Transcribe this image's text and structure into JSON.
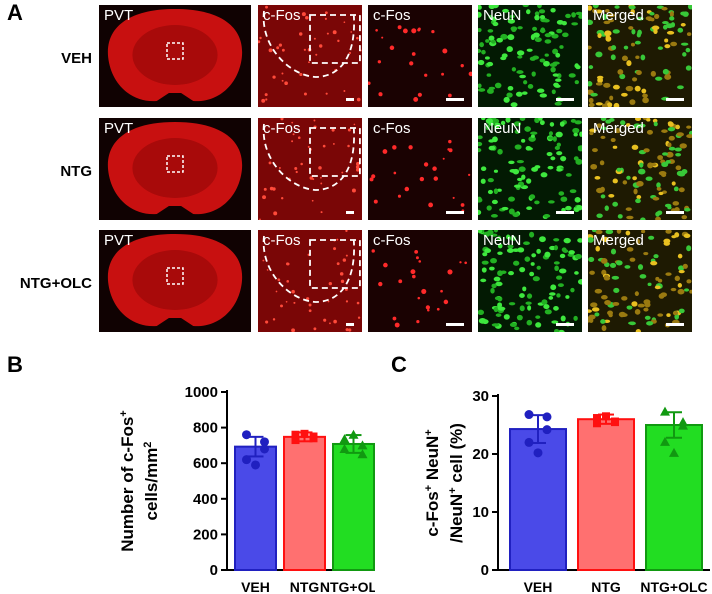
{
  "panel_a": {
    "letter": "A",
    "rows": [
      {
        "label": "VEH",
        "tiles": [
          "PVT",
          "c-Fos",
          "c-Fos",
          "NeuN",
          "Merged"
        ]
      },
      {
        "label": "NTG",
        "tiles": [
          "PVT",
          "c-Fos",
          "c-Fos",
          "NeuN",
          "Merged"
        ]
      },
      {
        "label": "NTG+OLC",
        "tiles": [
          "PVT",
          "c-Fos",
          "c-Fos",
          "NeuN",
          "Merged"
        ]
      }
    ]
  },
  "panel_b": {
    "letter": "B"
  },
  "panel_c": {
    "letter": "C"
  },
  "colors": {
    "veh": "#4a4ae8",
    "ntg": "#ff7070",
    "olc": "#22dd22",
    "veh_dot": "#2020c0",
    "ntg_dot": "#ff1010",
    "olc_dot": "#119911"
  },
  "chart_data": [
    {
      "type": "bar",
      "ylabel": "Number of c-Fos⁺ cells/mm²",
      "categories": [
        "VEH",
        "NTG",
        "NTG+OLC"
      ],
      "values": [
        693,
        748,
        708
      ],
      "errors": [
        55,
        25,
        50
      ],
      "points": [
        [
          760,
          620,
          720,
          590,
          680
        ],
        [
          760,
          730,
          740,
          765,
          750
        ],
        [
          735,
          680,
          650,
          760,
          700
        ]
      ],
      "ylim": [
        0,
        1000
      ],
      "yticks": [
        "0",
        "200",
        "400",
        "600",
        "800",
        "1000"
      ]
    },
    {
      "type": "bar",
      "ylabel": "c-Fos⁺ NeuN⁺ /NeuN⁺ cell (%)",
      "categories": [
        "VEH",
        "NTG",
        "NTG+OLC"
      ],
      "values": [
        24.3,
        26.0,
        25.0
      ],
      "errors": [
        2.4,
        0.8,
        2.2
      ],
      "points": [
        [
          26.8,
          22.0,
          24.2,
          20.2,
          26.4
        ],
        [
          26.2,
          25.3,
          25.6,
          26.5,
          25.5
        ],
        [
          27.3,
          22.1,
          25.5,
          20.2,
          24.9
        ]
      ],
      "ylim": [
        0,
        30
      ],
      "yticks": [
        "0",
        "10",
        "20",
        "30"
      ]
    }
  ]
}
